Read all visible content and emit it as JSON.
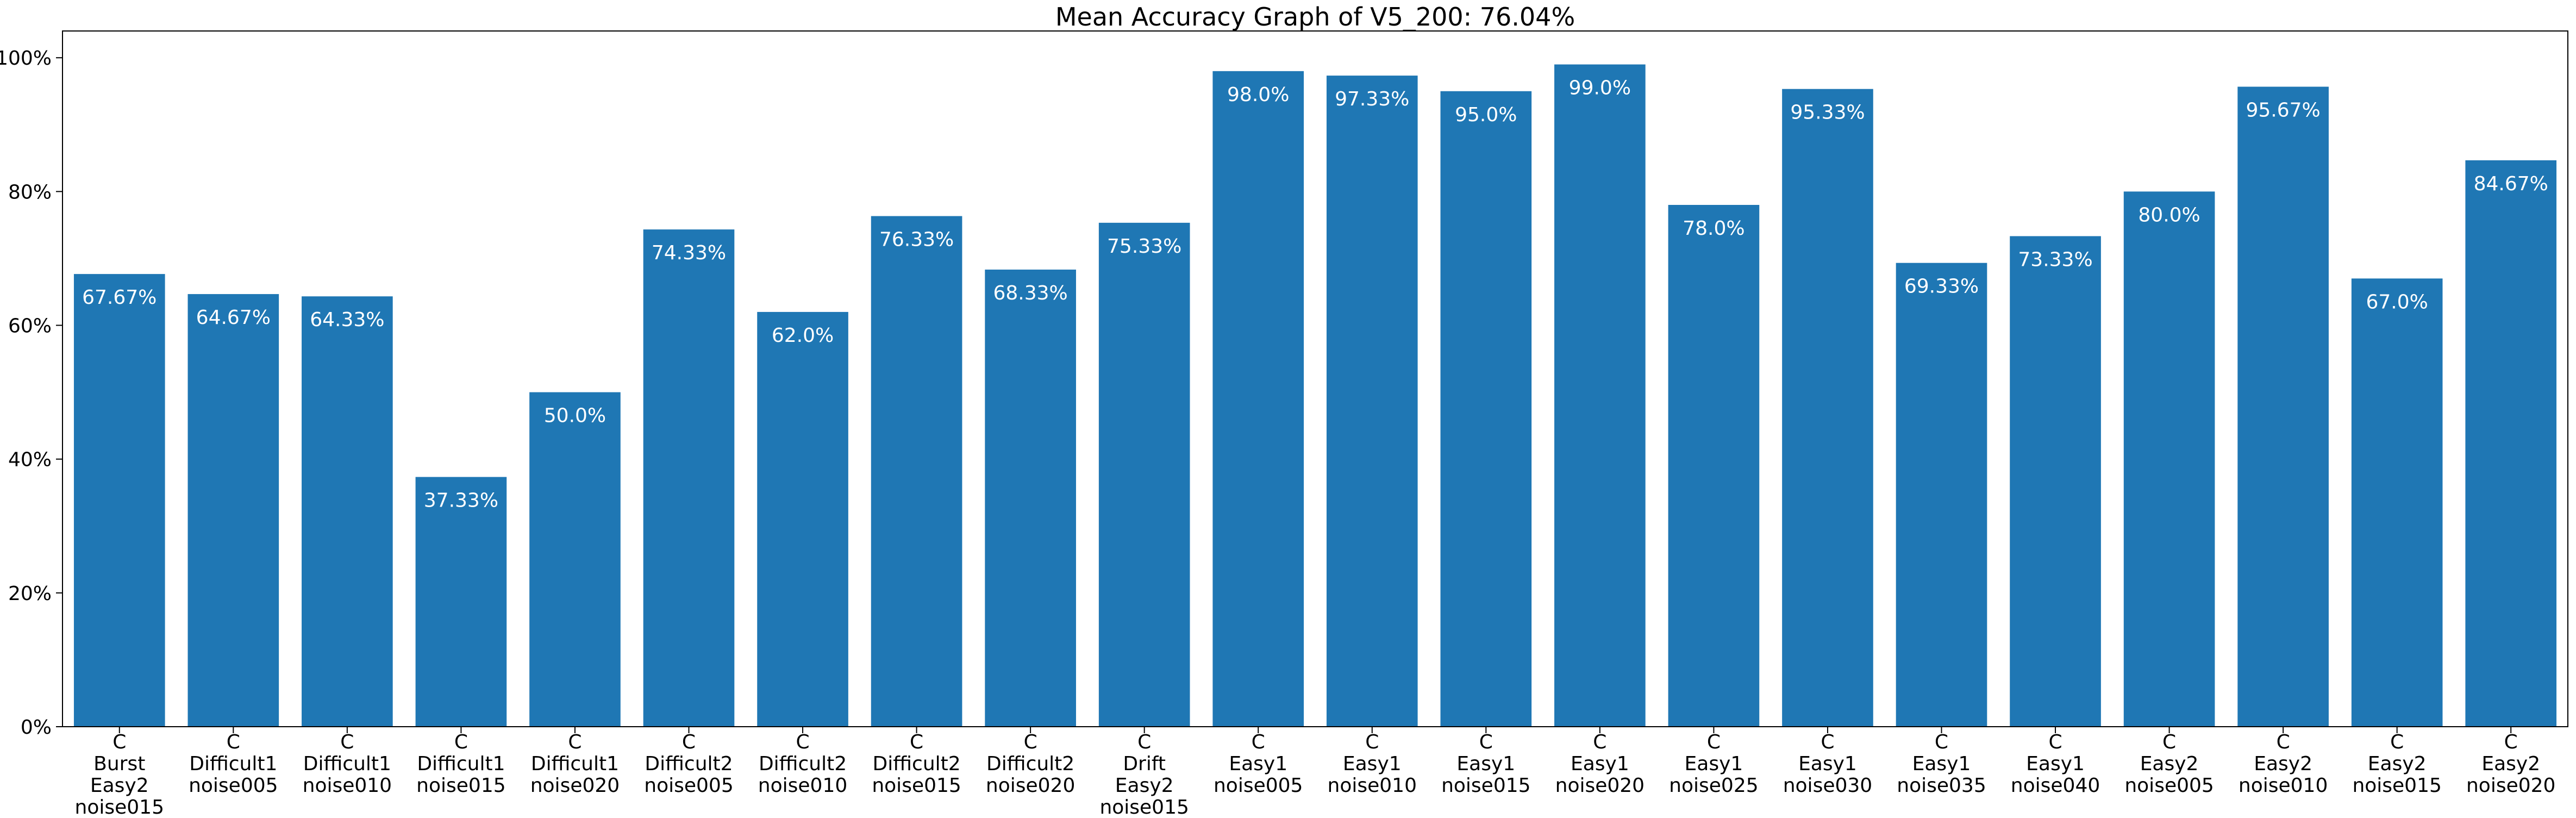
{
  "chart_data": {
    "type": "bar",
    "title": "Mean Accuracy Graph of V5_200: 76.04%",
    "xlabel": "",
    "ylabel": "",
    "ylim": [
      0,
      104
    ],
    "yticks": [
      0,
      20,
      40,
      60,
      80,
      100
    ],
    "ytick_labels": [
      "0%",
      "20%",
      "40%",
      "60%",
      "80%",
      "100%"
    ],
    "grid": false,
    "bar_color": "#1f77b4",
    "label_color": "#ffffff",
    "categories": [
      [
        "C",
        "Burst",
        "Easy2",
        "noise015"
      ],
      [
        "C",
        "Difficult1",
        "noise005"
      ],
      [
        "C",
        "Difficult1",
        "noise010"
      ],
      [
        "C",
        "Difficult1",
        "noise015"
      ],
      [
        "C",
        "Difficult1",
        "noise020"
      ],
      [
        "C",
        "Difficult2",
        "noise005"
      ],
      [
        "C",
        "Difficult2",
        "noise010"
      ],
      [
        "C",
        "Difficult2",
        "noise015"
      ],
      [
        "C",
        "Difficult2",
        "noise020"
      ],
      [
        "C",
        "Drift",
        "Easy2",
        "noise015"
      ],
      [
        "C",
        "Easy1",
        "noise005"
      ],
      [
        "C",
        "Easy1",
        "noise010"
      ],
      [
        "C",
        "Easy1",
        "noise015"
      ],
      [
        "C",
        "Easy1",
        "noise020"
      ],
      [
        "C",
        "Easy1",
        "noise025"
      ],
      [
        "C",
        "Easy1",
        "noise030"
      ],
      [
        "C",
        "Easy1",
        "noise035"
      ],
      [
        "C",
        "Easy1",
        "noise040"
      ],
      [
        "C",
        "Easy2",
        "noise005"
      ],
      [
        "C",
        "Easy2",
        "noise010"
      ],
      [
        "C",
        "Easy2",
        "noise015"
      ],
      [
        "C",
        "Easy2",
        "noise020"
      ]
    ],
    "values": [
      67.67,
      64.67,
      64.33,
      37.33,
      50.0,
      74.33,
      62.0,
      76.33,
      68.33,
      75.33,
      98.0,
      97.33,
      95.0,
      99.0,
      78.0,
      95.33,
      69.33,
      73.33,
      80.0,
      95.67,
      67.0,
      84.67
    ],
    "data_labels": [
      "67.67%",
      "64.67%",
      "64.33%",
      "37.33%",
      "50.0%",
      "74.33%",
      "62.0%",
      "76.33%",
      "68.33%",
      "75.33%",
      "98.0%",
      "97.33%",
      "95.0%",
      "99.0%",
      "78.0%",
      "95.33%",
      "69.33%",
      "73.33%",
      "80.0%",
      "95.67%",
      "67.0%",
      "84.67%"
    ]
  }
}
